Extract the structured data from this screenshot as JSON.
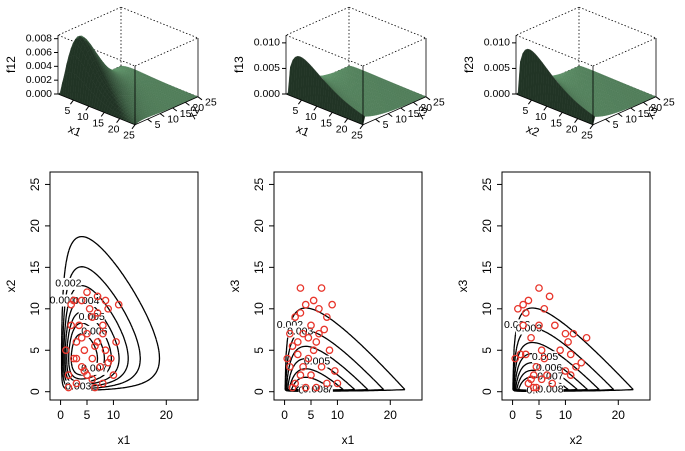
{
  "chart_data": [
    {
      "type": "surface",
      "zlabel": "f12",
      "xlabel": "x1",
      "ylabel": "x2",
      "color": "#4a7352",
      "xlim": [
        0,
        25
      ],
      "ylim": [
        0,
        25
      ],
      "zlim": [
        0,
        0.0085
      ],
      "xticks": [
        5,
        10,
        15,
        20,
        25
      ],
      "yticks": [
        5,
        10,
        15,
        20,
        25
      ],
      "zticks": [
        {
          "value": 0,
          "label": "0.000"
        },
        0.002,
        0.004,
        0.006,
        0.008
      ]
    },
    {
      "type": "surface",
      "zlabel": "f13",
      "xlabel": "x1",
      "ylabel": "x3",
      "color": "#4a7352",
      "xlim": [
        0,
        25
      ],
      "ylim": [
        0,
        25
      ],
      "zlim": [
        0,
        0.0115
      ],
      "xticks": [
        5,
        10,
        15,
        20,
        25
      ],
      "yticks": [
        5,
        10,
        15,
        20,
        25
      ],
      "zticks": [
        {
          "value": 0,
          "label": "0.000"
        },
        0.005,
        {
          "value": 0.01,
          "label": "0.010"
        }
      ]
    },
    {
      "type": "surface",
      "zlabel": "f23",
      "xlabel": "x2",
      "ylabel": "x3",
      "color": "#4a7352",
      "xlim": [
        0,
        25
      ],
      "ylim": [
        0,
        25
      ],
      "zlim": [
        0,
        0.0115
      ],
      "xticks": [
        5,
        10,
        15,
        20,
        25
      ],
      "yticks": [
        5,
        10,
        15,
        20,
        25
      ],
      "zticks": [
        {
          "value": 0,
          "label": "0.000"
        },
        0.005,
        {
          "value": 0.01,
          "label": "0.010"
        }
      ]
    },
    {
      "type": "contour",
      "xlabel": "x1",
      "ylabel": "x2",
      "color": "#e8352b",
      "xlim": [
        -2,
        26
      ],
      "ylim": [
        -1,
        26.5
      ],
      "xticks": [
        0,
        5,
        10,
        20
      ],
      "yticks": [
        0,
        5,
        10,
        15,
        20,
        25
      ],
      "levels": [
        0.001,
        0.002,
        0.003,
        0.004,
        0.005,
        0.006,
        0.007
      ],
      "x": [
        1,
        1.5,
        2,
        2.5,
        3,
        3,
        3.5,
        4,
        4,
        4.5,
        5,
        5,
        5.5,
        6,
        6,
        6.5,
        7,
        7,
        7.5,
        8,
        8,
        8.5,
        9,
        9.5,
        10,
        10.5,
        11,
        2,
        3,
        4,
        5,
        6,
        7,
        8,
        9,
        1.5,
        2.5,
        4.5,
        6.5,
        8.5
      ],
      "y": [
        5,
        2,
        10.5,
        4,
        6,
        1,
        8,
        3,
        11,
        5,
        7,
        2,
        10,
        4,
        9,
        0.5,
        6,
        11.5,
        3,
        8,
        1,
        5,
        10,
        4,
        2,
        6,
        10.5,
        8,
        4,
        6.5,
        12,
        1.5,
        9.5,
        7,
        3.5,
        0.5,
        11,
        2.5,
        5.5,
        11
      ]
    },
    {
      "type": "contour",
      "xlabel": "x1",
      "ylabel": "x3",
      "color": "#e8352b",
      "xlim": [
        -2,
        26
      ],
      "ylim": [
        -1,
        26.5
      ],
      "xticks": [
        0,
        5,
        10,
        20
      ],
      "yticks": [
        0,
        5,
        10,
        15,
        20,
        25
      ],
      "levels": [
        0.002,
        0.003,
        0.004,
        0.005,
        0.006,
        0.007,
        0.008
      ],
      "x": [
        0.5,
        1,
        1,
        1.5,
        2,
        2,
        2.5,
        3,
        3,
        3.5,
        4,
        4,
        4.5,
        5,
        5,
        5.5,
        6,
        6,
        6.5,
        7,
        7,
        7.5,
        8,
        8,
        8.5,
        9,
        9.5,
        10,
        1.5,
        2.5,
        3.5,
        5.5,
        6.5,
        3,
        4.5
      ],
      "y": [
        4,
        7,
        3,
        5.5,
        9,
        1,
        6,
        12.5,
        2,
        7,
        0.5,
        10.5,
        4,
        8,
        2,
        11,
        6,
        0.5,
        10,
        3,
        12.5,
        7.5,
        1,
        9,
        5,
        10.5,
        2.5,
        1,
        0.5,
        4.5,
        3,
        5,
        7,
        9.5,
        6.5
      ]
    },
    {
      "type": "contour",
      "xlabel": "x2",
      "ylabel": "x3",
      "color": "#e8352b",
      "xlim": [
        -2,
        26
      ],
      "ylim": [
        -1,
        26.5
      ],
      "xticks": [
        0,
        5,
        10,
        20
      ],
      "yticks": [
        0,
        5,
        10,
        15,
        20,
        25
      ],
      "levels": [
        0.002,
        0.003,
        0.004,
        0.005,
        0.006,
        0.007,
        0.008
      ],
      "x": [
        0.5,
        1,
        1.5,
        2,
        2,
        2.5,
        3,
        3,
        3.5,
        4,
        4,
        4.5,
        5,
        5,
        5.5,
        6,
        6,
        6.5,
        7,
        7.5,
        8,
        9,
        10,
        10.5,
        11,
        11,
        12,
        13,
        14,
        3.5,
        4.5,
        5.5,
        2.5,
        10,
        11.5
      ],
      "y": [
        4,
        10,
        4.5,
        8,
        10.5,
        4.5,
        11,
        1,
        6.5,
        2,
        0.5,
        3,
        8,
        12.5,
        1.5,
        10,
        4,
        2,
        11.5,
        1,
        8,
        5,
        7,
        6,
        2,
        4.5,
        3,
        3.5,
        6.5,
        1.5,
        0.5,
        5,
        9.5,
        2.5,
        7
      ]
    }
  ]
}
